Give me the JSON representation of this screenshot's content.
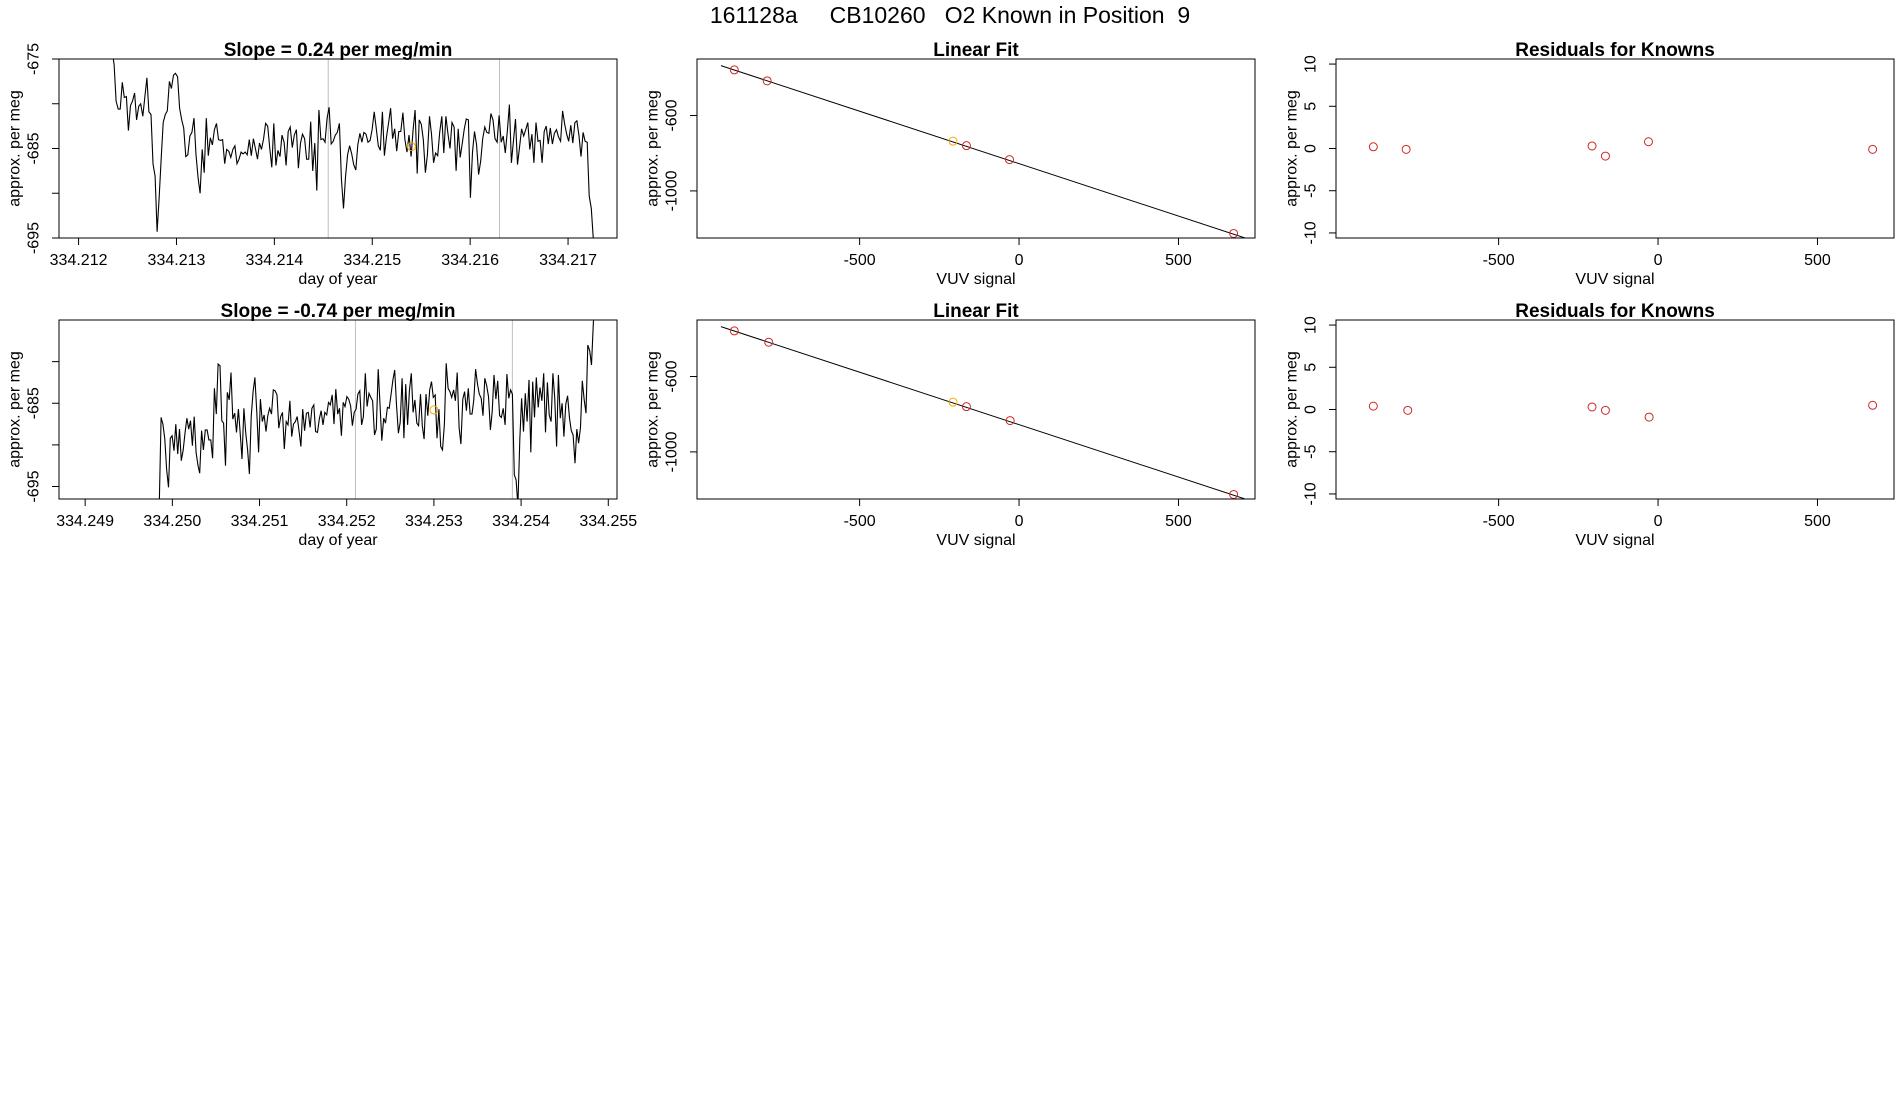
{
  "page": {
    "title": "161128a     CB10260   O2 Known in Position  9"
  },
  "colors": {
    "line": "#000000",
    "frame": "#000000",
    "vline": "#bebebe",
    "known_point": "#cd2626",
    "sample_point": "#ffa500"
  },
  "chart_data": [
    {
      "type": "line",
      "title": "Slope =  0.24  per meg/min",
      "xlabel": "day of year",
      "ylabel": "approx. per meg",
      "xlim": [
        334.2118,
        334.2175
      ],
      "ylim": [
        -695,
        -675
      ],
      "xticks": [
        334.212,
        334.213,
        334.214,
        334.215,
        334.216,
        334.217
      ],
      "xtick_labels": [
        "334.212",
        "334.213",
        "334.214",
        "334.215",
        "334.216",
        "334.217"
      ],
      "yticks": [
        -695,
        -690,
        -685,
        -680,
        -675
      ],
      "ytick_labels": [
        "-695",
        "",
        "-685",
        "",
        "-675"
      ],
      "vlines": [
        334.21455,
        334.2163
      ],
      "marker": {
        "x": 334.2154,
        "y": -684.8
      },
      "x_start": 334.2123,
      "x_end": 334.2173,
      "y": [
        -672.6,
        -673.5,
        -674.0,
        -675.6,
        -679.7,
        -680.6,
        -680.6,
        -677.6,
        -679.3,
        -679.2,
        -683.0,
        -680.2,
        -679.7,
        -678.8,
        -681.8,
        -680.3,
        -680.0,
        -681.4,
        -679.3,
        -677.1,
        -680.9,
        -681.2,
        -686.7,
        -688.1,
        -694.3,
        -690.6,
        -686.1,
        -682.1,
        -681.2,
        -680.8,
        -677.5,
        -678.3,
        -676.8,
        -676.6,
        -677.0,
        -680.5,
        -681.8,
        -682.7,
        -685.9,
        -685.7,
        -683.6,
        -683.2,
        -681.6,
        -685.7,
        -688.3,
        -690.0,
        -685.1,
        -687.7,
        -681.6,
        -685.8,
        -683.8,
        -684.6,
        -682.9,
        -682.2,
        -684.0,
        -684.1,
        -684.0,
        -686.7,
        -685.1,
        -685.3,
        -686.0,
        -685.1,
        -684.7,
        -686.7,
        -686.2,
        -685.4,
        -685.6,
        -685.4,
        -685.7,
        -684.0,
        -685.8,
        -683.9,
        -685.0,
        -686.2,
        -684.4,
        -685.1,
        -683.9,
        -682.2,
        -682.5,
        -684.9,
        -687.1,
        -682.2,
        -686.9,
        -685.2,
        -685.9,
        -683.5,
        -684.3,
        -686.9,
        -683.1,
        -682.6,
        -684.9,
        -683.5,
        -682.9,
        -687.2,
        -684.4,
        -683.4,
        -683.9,
        -686.2,
        -686.2,
        -682.0,
        -687.5,
        -684.4,
        -689.7,
        -680.7,
        -684.0,
        -683.9,
        -684.3,
        -681.6,
        -680.4,
        -684.5,
        -684.2,
        -683.5,
        -683.2,
        -682.2,
        -688.4,
        -691.7,
        -688.2,
        -685.7,
        -684.7,
        -685.6,
        -686.8,
        -687.4,
        -684.6,
        -683.3,
        -684.3,
        -683.2,
        -683.4,
        -684.3,
        -684.1,
        -682.9,
        -680.9,
        -682.7,
        -684.7,
        -685.2,
        -680.9,
        -685.8,
        -683.7,
        -682.2,
        -680.5,
        -683.9,
        -682.8,
        -685.3,
        -683.1,
        -683.1,
        -681.0,
        -684.0,
        -685.4,
        -683.5,
        -685.9,
        -682.9,
        -680.7,
        -687.8,
        -681.8,
        -682.3,
        -684.0,
        -687.7,
        -685.7,
        -681.4,
        -683.4,
        -686.6,
        -685.5,
        -685.8,
        -683.2,
        -681.4,
        -685.5,
        -681.4,
        -683.3,
        -685.0,
        -682.1,
        -682.6,
        -687.5,
        -682.8,
        -686.0,
        -684.4,
        -682.8,
        -681.7,
        -681.8,
        -690.5,
        -685.4,
        -683.1,
        -684.6,
        -687.9,
        -686.4,
        -683.9,
        -682.6,
        -683.2,
        -683.3,
        -681.1,
        -681.8,
        -683.9,
        -684.3,
        -681.3,
        -684.3,
        -683.6,
        -685.5,
        -683.1,
        -680.1,
        -686.6,
        -684.1,
        -681.7,
        -686.8,
        -684.8,
        -682.8,
        -683.6,
        -682.9,
        -682.1,
        -685.1,
        -683.4,
        -686.6,
        -682.1,
        -684.2,
        -684.1,
        -686.6,
        -683.1,
        -682.5,
        -684.5,
        -682.7,
        -684.5,
        -683.3,
        -682.9,
        -683.7,
        -684.2,
        -680.8,
        -682.3,
        -683.4,
        -684.2,
        -682.4,
        -684.4,
        -682.1,
        -681.9,
        -683.6,
        -685.9,
        -683.2,
        -684.2,
        -684.3,
        -690.3,
        -691.7,
        -695.1,
        -695.6,
        -700.1
      ]
    },
    {
      "type": "scatter",
      "title": "Linear Fit",
      "xlabel": "VUV signal",
      "ylabel": "approx. per meg",
      "xlim": [
        -1010,
        740
      ],
      "ylim": [
        -1250,
        -300
      ],
      "xticks": [
        -500,
        0,
        500
      ],
      "xtick_labels": [
        "-500",
        "0",
        "500"
      ],
      "yticks": [
        -1000,
        -600
      ],
      "ytick_labels": [
        "-1000",
        "-600"
      ],
      "fit_line": {
        "x": [
          -935,
          745
        ],
        "y": [
          -335,
          -1270
        ]
      },
      "points": [
        {
          "x": -893,
          "y": -358,
          "kind": "known"
        },
        {
          "x": -790,
          "y": -416,
          "kind": "known"
        },
        {
          "x": -207,
          "y": -736,
          "kind": "sample"
        },
        {
          "x": -165,
          "y": -760,
          "kind": "known"
        },
        {
          "x": -30,
          "y": -834,
          "kind": "known"
        },
        {
          "x": 673,
          "y": -1226,
          "kind": "known"
        }
      ]
    },
    {
      "type": "scatter",
      "title": "Residuals for Knowns",
      "xlabel": "VUV signal",
      "ylabel": "approx. per meg",
      "xlim": [
        -1010,
        740
      ],
      "ylim": [
        -10.6,
        10.6
      ],
      "xticks": [
        -500,
        0,
        500
      ],
      "xtick_labels": [
        "-500",
        "0",
        "500"
      ],
      "yticks": [
        -10,
        -5,
        0,
        5,
        10
      ],
      "ytick_labels": [
        "-10",
        "-5",
        "0",
        "5",
        "10"
      ],
      "points": [
        {
          "x": -893,
          "y": 0.2,
          "kind": "known"
        },
        {
          "x": -790,
          "y": -0.1,
          "kind": "known"
        },
        {
          "x": -207,
          "y": 0.3,
          "kind": "known"
        },
        {
          "x": -165,
          "y": -0.9,
          "kind": "known"
        },
        {
          "x": -30,
          "y": 0.8,
          "kind": "known"
        },
        {
          "x": 673,
          "y": -0.1,
          "kind": "known"
        }
      ]
    },
    {
      "type": "line",
      "title": "Slope =  -0.74  per meg/min",
      "xlabel": "day of year",
      "ylabel": "approx. per meg",
      "xlim": [
        334.2487,
        334.2551
      ],
      "ylim": [
        -696.5,
        -675
      ],
      "xticks": [
        334.249,
        334.25,
        334.251,
        334.252,
        334.253,
        334.254,
        334.255
      ],
      "xtick_labels": [
        "334.249",
        "334.250",
        "334.251",
        "334.252",
        "334.253",
        "334.254",
        "334.255"
      ],
      "yticks": [
        -695,
        -690,
        -685,
        -680
      ],
      "ytick_labels": [
        "-695",
        "",
        "-685",
        ""
      ],
      "vlines": [
        334.2521,
        334.2539
      ],
      "marker": {
        "x": 334.253,
        "y": -685.8
      },
      "x_start": 334.24985,
      "x_end": 334.25485,
      "y": [
        -697.0,
        -686.7,
        -687.5,
        -689.3,
        -692.9,
        -695.1,
        -689.2,
        -688.9,
        -690.7,
        -687.5,
        -691.1,
        -688.1,
        -691.9,
        -690.6,
        -688.6,
        -686.8,
        -688.1,
        -687.1,
        -690.1,
        -686.6,
        -690.9,
        -692.4,
        -693.4,
        -688.3,
        -690.6,
        -688.2,
        -688.2,
        -689.4,
        -689.4,
        -691.6,
        -683.2,
        -686.3,
        -680.3,
        -680.5,
        -687.1,
        -687.4,
        -692.5,
        -683.7,
        -684.6,
        -681.3,
        -686.9,
        -686.2,
        -688.5,
        -685.7,
        -688.6,
        -691.7,
        -685.6,
        -688.5,
        -690.6,
        -693.5,
        -686.6,
        -683.6,
        -681.9,
        -686.1,
        -690.9,
        -684.5,
        -687.2,
        -686.4,
        -688.4,
        -686.5,
        -685.6,
        -686.3,
        -683.4,
        -683.5,
        -684.0,
        -688.0,
        -686.6,
        -686.1,
        -690.5,
        -687.2,
        -687.6,
        -684.7,
        -689.0,
        -687.5,
        -687.2,
        -686.6,
        -688.4,
        -690.2,
        -685.7,
        -688.3,
        -686.2,
        -686.1,
        -687.9,
        -685.6,
        -685.2,
        -688.4,
        -688.5,
        -686.9,
        -685.9,
        -687.6,
        -686.1,
        -686.4,
        -684.9,
        -685.2,
        -684.0,
        -687.5,
        -683.3,
        -686.3,
        -685.6,
        -688.9,
        -684.9,
        -685.4,
        -684.2,
        -684.5,
        -685.3,
        -687.7,
        -686.1,
        -685.7,
        -683.9,
        -683.5,
        -687.6,
        -686.6,
        -681.4,
        -685.4,
        -683.8,
        -684.3,
        -684.7,
        -688.8,
        -688.1,
        -680.9,
        -685.1,
        -689.5,
        -686.8,
        -687.4,
        -685.5,
        -685.6,
        -684.0,
        -682.2,
        -681.0,
        -685.2,
        -688.6,
        -687.3,
        -682.0,
        -689.2,
        -682.7,
        -687.6,
        -683.5,
        -681.4,
        -686.1,
        -684.6,
        -687.4,
        -687.7,
        -683.9,
        -687.7,
        -689.3,
        -683.9,
        -686.5,
        -683.4,
        -682.4,
        -684.3,
        -684.0,
        -689.2,
        -685.7,
        -690.2,
        -690.6,
        -687.5,
        -680.2,
        -683.2,
        -683.6,
        -684.3,
        -683.4,
        -684.7,
        -681.3,
        -687.9,
        -689.9,
        -684.5,
        -683.6,
        -685.9,
        -683.2,
        -686.3,
        -686.3,
        -684.6,
        -680.9,
        -682.7,
        -683.9,
        -684.4,
        -686.5,
        -682.0,
        -682.9,
        -684.2,
        -688.2,
        -686.0,
        -681.6,
        -684.5,
        -682.3,
        -686.5,
        -686.7,
        -685.6,
        -687.6,
        -681.5,
        -684.4,
        -683.4,
        -683.9,
        -693.6,
        -694.2,
        -697.3,
        -689.4,
        -684.4,
        -688.4,
        -683.8,
        -687.2,
        -682.2,
        -690.9,
        -682.4,
        -686.7,
        -681.9,
        -685.5,
        -683.1,
        -684.7,
        -681.4,
        -688.5,
        -682.5,
        -686.4,
        -687.2,
        -681.4,
        -684.3,
        -690.2,
        -681.6,
        -686.8,
        -685.0,
        -689.0,
        -685.1,
        -684.1,
        -686.8,
        -688.3,
        -688.8,
        -692.2,
        -688.1,
        -689.8,
        -687.9,
        -682.3,
        -684.6,
        -686.2,
        -678.0,
        -678.7,
        -680.4,
        -675.2,
        -672.3
      ]
    },
    {
      "type": "scatter",
      "title": "Linear Fit",
      "xlabel": "VUV signal",
      "ylabel": "approx. per meg",
      "xlim": [
        -1010,
        740
      ],
      "ylim": [
        -1250,
        -300
      ],
      "xticks": [
        -500,
        0,
        500
      ],
      "xtick_labels": [
        "-500",
        "0",
        "500"
      ],
      "yticks": [
        -1000,
        -600
      ],
      "ytick_labels": [
        "-1000",
        "-600"
      ],
      "fit_line": {
        "x": [
          -935,
          745
        ],
        "y": [
          -335,
          -1270
        ]
      },
      "points": [
        {
          "x": -893,
          "y": -358,
          "kind": "known"
        },
        {
          "x": -785,
          "y": -418,
          "kind": "known"
        },
        {
          "x": -207,
          "y": -736,
          "kind": "sample"
        },
        {
          "x": -165,
          "y": -760,
          "kind": "known"
        },
        {
          "x": -28,
          "y": -834,
          "kind": "known"
        },
        {
          "x": 673,
          "y": -1226,
          "kind": "known"
        }
      ]
    },
    {
      "type": "scatter",
      "title": "Residuals for Knowns",
      "xlabel": "VUV signal",
      "ylabel": "approx. per meg",
      "xlim": [
        -1010,
        740
      ],
      "ylim": [
        -10.6,
        10.6
      ],
      "xticks": [
        -500,
        0,
        500
      ],
      "xtick_labels": [
        "-500",
        "0",
        "500"
      ],
      "yticks": [
        -10,
        -5,
        0,
        5,
        10
      ],
      "ytick_labels": [
        "-10",
        "-5",
        "0",
        "5",
        "10"
      ],
      "points": [
        {
          "x": -893,
          "y": 0.4,
          "kind": "known"
        },
        {
          "x": -785,
          "y": -0.1,
          "kind": "known"
        },
        {
          "x": -207,
          "y": 0.3,
          "kind": "known"
        },
        {
          "x": -165,
          "y": -0.1,
          "kind": "known"
        },
        {
          "x": -28,
          "y": -0.9,
          "kind": "known"
        },
        {
          "x": 673,
          "y": 0.5,
          "kind": "known"
        }
      ]
    }
  ]
}
